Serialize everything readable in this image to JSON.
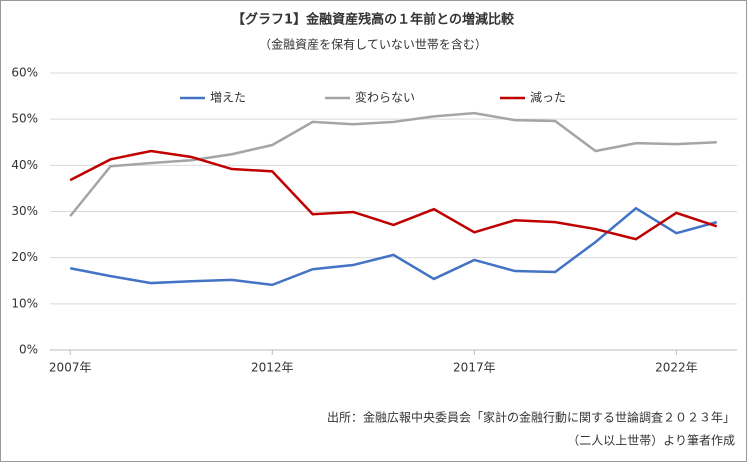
{
  "chart_data": {
    "type": "line",
    "title": "【グラフ1】金融資産残高の１年前との増減比較",
    "subtitle": "（金融資産を保有していない世帯を含む）",
    "source": [
      "出所：金融広報中央委員会「家計の金融行動に関する世論調査２０２３年」",
      "（二人以上世帯）より筆者作成"
    ],
    "x": [
      2007,
      2008,
      2009,
      2010,
      2011,
      2012,
      2013,
      2014,
      2015,
      2016,
      2017,
      2018,
      2019,
      2020,
      2021,
      2022,
      2023
    ],
    "series": [
      {
        "name": "増えた",
        "color": "#4472c4",
        "values": [
          17.7,
          16.0,
          14.5,
          14.9,
          15.2,
          14.1,
          17.5,
          18.4,
          20.6,
          15.4,
          19.5,
          17.1,
          16.9,
          23.4,
          30.7,
          25.3,
          27.7
        ]
      },
      {
        "name": "変わらない",
        "color": "#a5a5a5",
        "values": [
          29.0,
          39.8,
          40.5,
          41.1,
          42.4,
          44.4,
          49.4,
          48.9,
          49.4,
          50.6,
          51.3,
          49.8,
          49.6,
          43.1,
          44.8,
          44.6,
          45.0
        ]
      },
      {
        "name": "減った",
        "color": "#c00000",
        "values": [
          36.8,
          41.3,
          43.1,
          41.8,
          39.2,
          38.7,
          29.4,
          29.9,
          27.1,
          30.5,
          25.5,
          28.1,
          27.7,
          26.2,
          24.0,
          29.7,
          26.8
        ]
      }
    ],
    "xlim": [
      2006.5,
      2023.5
    ],
    "xticks": [
      {
        "value": 2007,
        "label": "2007年"
      },
      {
        "value": 2012,
        "label": "2012年"
      },
      {
        "value": 2017,
        "label": "2017年"
      },
      {
        "value": 2022,
        "label": "2022年"
      }
    ],
    "ylim": [
      0,
      60
    ],
    "yticks": [
      {
        "value": 0,
        "label": "0%"
      },
      {
        "value": 10,
        "label": "10%"
      },
      {
        "value": 20,
        "label": "20%"
      },
      {
        "value": 30,
        "label": "30%"
      },
      {
        "value": 40,
        "label": "40%"
      },
      {
        "value": 50,
        "label": "50%"
      },
      {
        "value": 60,
        "label": "60%"
      }
    ],
    "grid": true,
    "legend": "top"
  }
}
